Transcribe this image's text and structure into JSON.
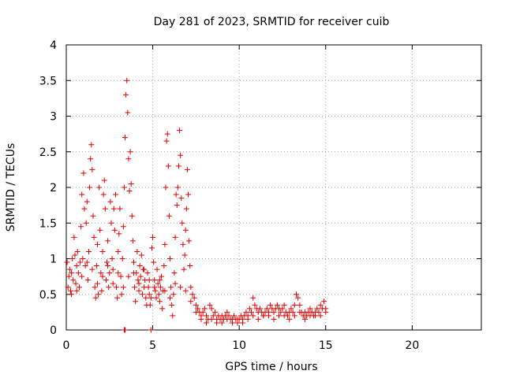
{
  "chart_data": {
    "type": "scatter",
    "title": "Day 281 of 2023, SRMTID for receiver cuib",
    "xlabel": "GPS time / hours",
    "ylabel": "SRMTID / TECUs",
    "xlim": [
      0,
      24
    ],
    "ylim": [
      0,
      4
    ],
    "xticks": [
      {
        "value": 0,
        "label": "0"
      },
      {
        "value": 5,
        "label": "5"
      },
      {
        "value": 10,
        "label": "10"
      },
      {
        "value": 15,
        "label": "15"
      },
      {
        "value": 20,
        "label": "20"
      }
    ],
    "yticks": [
      {
        "value": 0,
        "label": "0"
      },
      {
        "value": 0.5,
        "label": "0.5"
      },
      {
        "value": 1,
        "label": "1"
      },
      {
        "value": 1.5,
        "label": "1.5"
      },
      {
        "value": 2,
        "label": "2"
      },
      {
        "value": 2.5,
        "label": "2.5"
      },
      {
        "value": 3,
        "label": "3"
      },
      {
        "value": 3.5,
        "label": "3.5"
      },
      {
        "value": 4,
        "label": "4"
      }
    ],
    "grid": true,
    "marker": "+",
    "series": [
      {
        "name": "cuib",
        "color": "#e00000",
        "points": [
          [
            0.05,
            0.95
          ],
          [
            0.1,
            0.6
          ],
          [
            0.15,
            0.75
          ],
          [
            0.2,
            0.85
          ],
          [
            0.25,
            0.55
          ],
          [
            0.3,
            0.5
          ],
          [
            0.35,
            1.0
          ],
          [
            0.4,
            0.7
          ],
          [
            0.45,
            1.3
          ],
          [
            0.5,
            1.05
          ],
          [
            0.55,
            0.65
          ],
          [
            0.6,
            0.9
          ],
          [
            0.65,
            1.1
          ],
          [
            0.7,
            0.8
          ],
          [
            0.75,
            0.6
          ],
          [
            0.8,
            0.95
          ],
          [
            0.85,
            1.45
          ],
          [
            0.9,
            1.9
          ],
          [
            0.95,
            1.0
          ],
          [
            1.0,
            2.2
          ],
          [
            1.05,
            1.7
          ],
          [
            1.1,
            0.9
          ],
          [
            1.15,
            1.5
          ],
          [
            1.2,
            1.8
          ],
          [
            1.25,
            0.7
          ],
          [
            1.3,
            1.1
          ],
          [
            1.35,
            2.0
          ],
          [
            1.4,
            2.4
          ],
          [
            1.45,
            2.6
          ],
          [
            1.5,
            2.25
          ],
          [
            1.55,
            1.6
          ],
          [
            1.6,
            1.3
          ],
          [
            1.65,
            0.6
          ],
          [
            1.7,
            0.45
          ],
          [
            1.75,
            0.9
          ],
          [
            1.8,
            1.2
          ],
          [
            1.85,
            0.5
          ],
          [
            1.9,
            2.0
          ],
          [
            1.95,
            1.4
          ],
          [
            2.0,
            0.8
          ],
          [
            2.05,
            0.55
          ],
          [
            2.1,
            1.1
          ],
          [
            2.15,
            1.9
          ],
          [
            2.2,
            2.1
          ],
          [
            2.25,
            1.7
          ],
          [
            2.3,
            0.7
          ],
          [
            2.35,
            0.95
          ],
          [
            2.4,
            1.25
          ],
          [
            2.45,
            0.6
          ],
          [
            2.5,
            0.8
          ],
          [
            2.55,
            1.8
          ],
          [
            2.6,
            1.5
          ],
          [
            2.65,
            1.0
          ],
          [
            2.7,
            0.85
          ],
          [
            2.75,
            1.7
          ],
          [
            2.8,
            1.4
          ],
          [
            2.85,
            1.9
          ],
          [
            2.9,
            0.6
          ],
          [
            2.95,
            0.45
          ],
          [
            3.0,
            1.1
          ],
          [
            3.05,
            1.35
          ],
          [
            3.1,
            1.7
          ],
          [
            3.15,
            0.75
          ],
          [
            3.2,
            0.5
          ],
          [
            3.25,
            1.0
          ],
          [
            3.3,
            1.45
          ],
          [
            3.35,
            2.0
          ],
          [
            3.4,
            2.7
          ],
          [
            3.45,
            3.3
          ],
          [
            3.5,
            3.5
          ],
          [
            3.55,
            3.05
          ],
          [
            3.6,
            2.4
          ],
          [
            3.65,
            1.95
          ],
          [
            3.7,
            2.5
          ],
          [
            3.75,
            2.05
          ],
          [
            3.8,
            1.6
          ],
          [
            3.85,
            1.25
          ],
          [
            3.9,
            0.95
          ],
          [
            3.95,
            0.6
          ],
          [
            4.0,
            0.4
          ],
          [
            4.05,
            0.8
          ],
          [
            4.1,
            1.1
          ],
          [
            4.15,
            0.7
          ],
          [
            4.2,
            0.55
          ],
          [
            4.25,
            0.9
          ],
          [
            4.3,
            0.75
          ],
          [
            4.35,
            1.05
          ],
          [
            4.4,
            0.5
          ],
          [
            4.45,
            0.85
          ],
          [
            4.5,
            0.6
          ],
          [
            4.55,
            0.7
          ],
          [
            4.6,
            0.45
          ],
          [
            4.65,
            0.35
          ],
          [
            4.7,
            0.8
          ],
          [
            4.75,
            0.6
          ],
          [
            4.8,
            0.5
          ],
          [
            4.85,
            0.35
          ],
          [
            4.9,
            0.45
          ],
          [
            4.95,
            1.15
          ],
          [
            5.0,
            1.3
          ],
          [
            5.05,
            0.95
          ],
          [
            5.1,
            0.7
          ],
          [
            5.15,
            0.55
          ],
          [
            5.2,
            0.45
          ],
          [
            5.25,
            0.85
          ],
          [
            5.3,
            0.65
          ],
          [
            5.35,
            0.5
          ],
          [
            5.4,
            0.4
          ],
          [
            5.45,
            0.6
          ],
          [
            5.5,
            0.75
          ],
          [
            5.55,
            0.3
          ],
          [
            5.6,
            0.55
          ],
          [
            5.65,
            0.9
          ],
          [
            5.7,
            1.2
          ],
          [
            5.75,
            2.0
          ],
          [
            5.8,
            2.65
          ],
          [
            5.85,
            2.75
          ],
          [
            5.9,
            2.3
          ],
          [
            5.95,
            1.6
          ],
          [
            6.0,
            1.0
          ],
          [
            6.05,
            0.6
          ],
          [
            6.1,
            0.35
          ],
          [
            6.15,
            0.2
          ],
          [
            6.2,
            0.5
          ],
          [
            6.25,
            0.8
          ],
          [
            6.3,
            1.3
          ],
          [
            6.35,
            1.9
          ],
          [
            6.4,
            1.75
          ],
          [
            6.45,
            2.0
          ],
          [
            6.5,
            2.3
          ],
          [
            6.55,
            2.8
          ],
          [
            6.6,
            2.45
          ],
          [
            6.65,
            1.85
          ],
          [
            6.7,
            1.5
          ],
          [
            6.75,
            1.2
          ],
          [
            6.8,
            0.85
          ],
          [
            6.85,
            1.05
          ],
          [
            6.9,
            1.4
          ],
          [
            6.95,
            1.7
          ],
          [
            7.0,
            2.25
          ],
          [
            7.05,
            1.9
          ],
          [
            7.1,
            1.25
          ],
          [
            7.15,
            0.9
          ],
          [
            7.2,
            0.6
          ],
          [
            7.3,
            0.5
          ],
          [
            7.4,
            0.45
          ],
          [
            7.5,
            0.35
          ],
          [
            7.6,
            0.3
          ],
          [
            7.7,
            0.25
          ],
          [
            7.8,
            0.2
          ],
          [
            7.9,
            0.25
          ],
          [
            8.0,
            0.3
          ],
          [
            8.1,
            0.2
          ],
          [
            8.2,
            0.15
          ],
          [
            8.3,
            0.35
          ],
          [
            8.4,
            0.3
          ],
          [
            8.5,
            0.2
          ],
          [
            8.6,
            0.25
          ],
          [
            8.7,
            0.15
          ],
          [
            8.8,
            0.2
          ],
          [
            8.9,
            0.15
          ],
          [
            9.0,
            0.2
          ],
          [
            9.1,
            0.15
          ],
          [
            9.2,
            0.2
          ],
          [
            9.3,
            0.25
          ],
          [
            9.4,
            0.2
          ],
          [
            9.5,
            0.15
          ],
          [
            9.6,
            0.15
          ],
          [
            9.7,
            0.2
          ],
          [
            9.8,
            0.15
          ],
          [
            9.9,
            0.1
          ],
          [
            10.0,
            0.15
          ],
          [
            10.1,
            0.2
          ],
          [
            10.2,
            0.15
          ],
          [
            10.3,
            0.2
          ],
          [
            10.4,
            0.25
          ],
          [
            10.5,
            0.2
          ],
          [
            10.6,
            0.3
          ],
          [
            10.7,
            0.25
          ],
          [
            10.8,
            0.45
          ],
          [
            10.9,
            0.35
          ],
          [
            11.0,
            0.3
          ],
          [
            11.1,
            0.25
          ],
          [
            11.2,
            0.3
          ],
          [
            11.3,
            0.25
          ],
          [
            11.4,
            0.2
          ],
          [
            11.5,
            0.25
          ],
          [
            11.6,
            0.3
          ],
          [
            11.7,
            0.25
          ],
          [
            11.8,
            0.35
          ],
          [
            11.9,
            0.3
          ],
          [
            12.0,
            0.25
          ],
          [
            12.1,
            0.3
          ],
          [
            12.2,
            0.35
          ],
          [
            12.3,
            0.3
          ],
          [
            12.4,
            0.25
          ],
          [
            12.5,
            0.3
          ],
          [
            12.6,
            0.35
          ],
          [
            12.7,
            0.25
          ],
          [
            12.8,
            0.2
          ],
          [
            12.9,
            0.25
          ],
          [
            13.0,
            0.3
          ],
          [
            13.1,
            0.25
          ],
          [
            13.2,
            0.35
          ],
          [
            13.3,
            0.5
          ],
          [
            13.4,
            0.45
          ],
          [
            13.5,
            0.35
          ],
          [
            13.6,
            0.25
          ],
          [
            13.7,
            0.2
          ],
          [
            13.8,
            0.25
          ],
          [
            13.9,
            0.2
          ],
          [
            14.0,
            0.25
          ],
          [
            14.1,
            0.3
          ],
          [
            14.2,
            0.25
          ],
          [
            14.3,
            0.2
          ],
          [
            14.4,
            0.25
          ],
          [
            14.5,
            0.3
          ],
          [
            14.6,
            0.25
          ],
          [
            14.7,
            0.35
          ],
          [
            14.8,
            0.3
          ],
          [
            14.9,
            0.4
          ],
          [
            15.0,
            0.3
          ],
          [
            0.3,
            0.8
          ],
          [
            0.6,
            0.55
          ],
          [
            0.9,
            0.75
          ],
          [
            1.2,
            0.95
          ],
          [
            1.5,
            0.85
          ],
          [
            1.8,
            0.65
          ],
          [
            2.1,
            0.75
          ],
          [
            2.4,
            0.9
          ],
          [
            2.7,
            0.65
          ],
          [
            3.0,
            0.8
          ],
          [
            3.3,
            0.6
          ],
          [
            3.6,
            0.75
          ],
          [
            3.9,
            0.8
          ],
          [
            4.2,
            0.65
          ],
          [
            4.5,
            0.85
          ],
          [
            4.8,
            0.7
          ],
          [
            5.1,
            0.6
          ],
          [
            5.4,
            0.7
          ],
          [
            5.7,
            0.55
          ],
          [
            6.0,
            0.45
          ],
          [
            6.3,
            0.65
          ],
          [
            6.6,
            0.6
          ],
          [
            6.9,
            0.55
          ],
          [
            7.2,
            0.4
          ],
          [
            7.5,
            0.25
          ],
          [
            7.8,
            0.15
          ],
          [
            8.1,
            0.1
          ],
          [
            8.4,
            0.15
          ],
          [
            8.7,
            0.1
          ],
          [
            9.0,
            0.1
          ],
          [
            9.3,
            0.15
          ],
          [
            9.6,
            0.1
          ],
          [
            9.9,
            0.15
          ],
          [
            10.2,
            0.1
          ],
          [
            10.5,
            0.15
          ],
          [
            10.8,
            0.2
          ],
          [
            11.1,
            0.15
          ],
          [
            11.4,
            0.2
          ],
          [
            11.7,
            0.2
          ],
          [
            12.0,
            0.15
          ],
          [
            12.3,
            0.2
          ],
          [
            12.6,
            0.2
          ],
          [
            12.9,
            0.15
          ],
          [
            13.2,
            0.2
          ],
          [
            13.5,
            0.25
          ],
          [
            13.8,
            0.15
          ],
          [
            14.1,
            0.2
          ],
          [
            14.4,
            0.2
          ],
          [
            14.7,
            0.2
          ],
          [
            15.0,
            0.25
          ],
          [
            3.35,
            0.0
          ],
          [
            3.4,
            0.0
          ],
          [
            4.9,
            0.0
          ]
        ]
      }
    ]
  }
}
